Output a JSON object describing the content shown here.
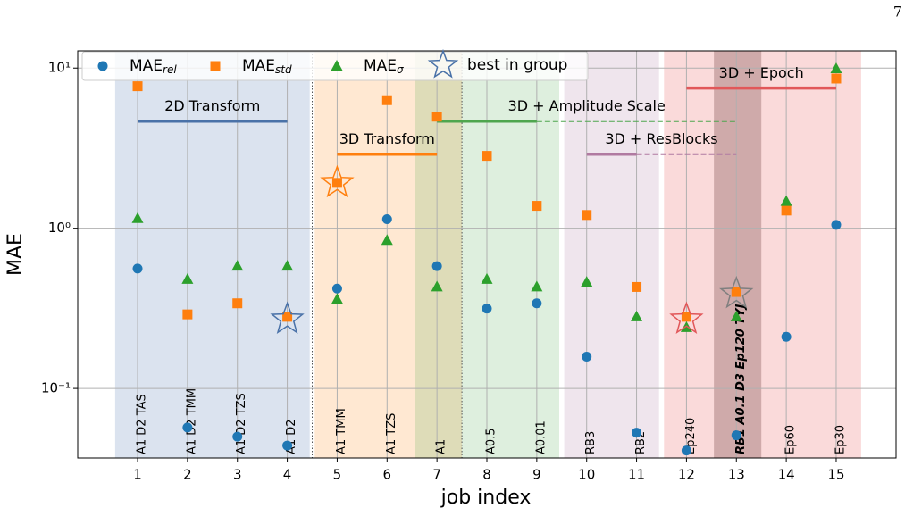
{
  "page_number": "7",
  "chart_data": {
    "type": "scatter",
    "xlabel": "job index",
    "ylabel": "MAE",
    "xlim": [
      -0.2,
      16.2
    ],
    "ylim": [
      0.0368,
      12.8
    ],
    "log_y": true,
    "grid": true,
    "legend": "upper left",
    "xticks": [
      1,
      2,
      3,
      4,
      5,
      6,
      7,
      8,
      9,
      10,
      11,
      12,
      13,
      14,
      15
    ],
    "yticks": [
      {
        "value": 0.1,
        "label": "10⁻¹"
      },
      {
        "value": 1,
        "label": "10⁰"
      },
      {
        "value": 10,
        "label": "10¹"
      }
    ],
    "job_labels": [
      "A1 D2 TAS",
      "A1 D2 TMM",
      "A1 D2 TZS",
      "A1 D2",
      "A1 TMM",
      "A1 TZS",
      "A1",
      "A0.5",
      "A0.01",
      "RB3",
      "RB2",
      "Ep240",
      "RB1 A0.1 D3 Ep120 TYJ",
      "Ep60",
      "Ep30"
    ],
    "highlight_label_index": 12,
    "x": [
      1,
      2,
      3,
      4,
      5,
      6,
      7,
      8,
      9,
      10,
      11,
      12,
      13,
      14,
      15
    ],
    "series": [
      {
        "name": "MAE",
        "name_sub": "rel",
        "marker": "circle",
        "color": "#1f77b4",
        "values": [
          0.56,
          0.057,
          0.05,
          0.044,
          0.42,
          1.14,
          0.58,
          0.315,
          0.34,
          0.158,
          0.053,
          0.041,
          0.051,
          0.21,
          1.05
        ]
      },
      {
        "name": "MAE",
        "name_sub": "std",
        "marker": "square",
        "color": "#ff7f0e",
        "values": [
          7.7,
          0.29,
          0.34,
          0.28,
          1.92,
          6.3,
          4.97,
          2.83,
          1.38,
          1.21,
          0.43,
          0.28,
          0.4,
          1.29,
          8.6
        ]
      },
      {
        "name": "MAE",
        "name_sub": "σ",
        "marker": "triangle",
        "color": "#2ca02c",
        "values": [
          1.15,
          0.48,
          0.58,
          0.58,
          0.36,
          0.84,
          0.43,
          0.48,
          0.43,
          0.46,
          0.28,
          0.24,
          0.28,
          1.47,
          9.9
        ]
      }
    ],
    "best": {
      "name": "best in group",
      "legend_color": "#4a72a8",
      "x": [
        4,
        5,
        12,
        13
      ],
      "values": [
        0.27,
        1.92,
        0.27,
        0.39
      ],
      "colors": [
        "#4a72a8",
        "#ff7f0e",
        "#e15759",
        "#7f7f7f"
      ]
    },
    "regions": [
      {
        "x": [
          0.55,
          4.45
        ],
        "color": "rgba(76,114,176,0.2)"
      },
      {
        "x": [
          4.55,
          7.5
        ],
        "color": "rgba(255,140,30,0.2)"
      },
      {
        "x": [
          6.55,
          9.45
        ],
        "color": "rgba(60,160,60,0.17)"
      },
      {
        "x": [
          9.55,
          11.45
        ],
        "color": "rgba(160,100,150,0.17)"
      },
      {
        "x": [
          11.55,
          15.5
        ],
        "color": "rgba(230,70,70,0.2)"
      },
      {
        "x": [
          12.55,
          13.5
        ],
        "color": "rgba(110,60,60,0.3)"
      }
    ],
    "separators": [
      4.5,
      7.5
    ],
    "groups": [
      {
        "label": "2D Transform",
        "color": "#4a72a8",
        "y": 4.66,
        "x": [
          1,
          4
        ]
      },
      {
        "label": "3D Transform",
        "color": "#ff7f0e",
        "y": 2.9,
        "x": [
          5,
          7
        ]
      },
      {
        "label": "3D + Amplitude Scale",
        "color": "#4ea64e",
        "y": 4.66,
        "x": [
          7,
          9
        ],
        "dashed_x": [
          9,
          13
        ]
      },
      {
        "label": "3D + ResBlocks",
        "color": "#b07aa1",
        "y": 2.9,
        "x": [
          10,
          11
        ],
        "dashed_x": [
          11,
          13
        ]
      },
      {
        "label": "3D + Epoch",
        "color": "#e15759",
        "y": 7.5,
        "x": [
          12,
          15
        ]
      }
    ]
  }
}
